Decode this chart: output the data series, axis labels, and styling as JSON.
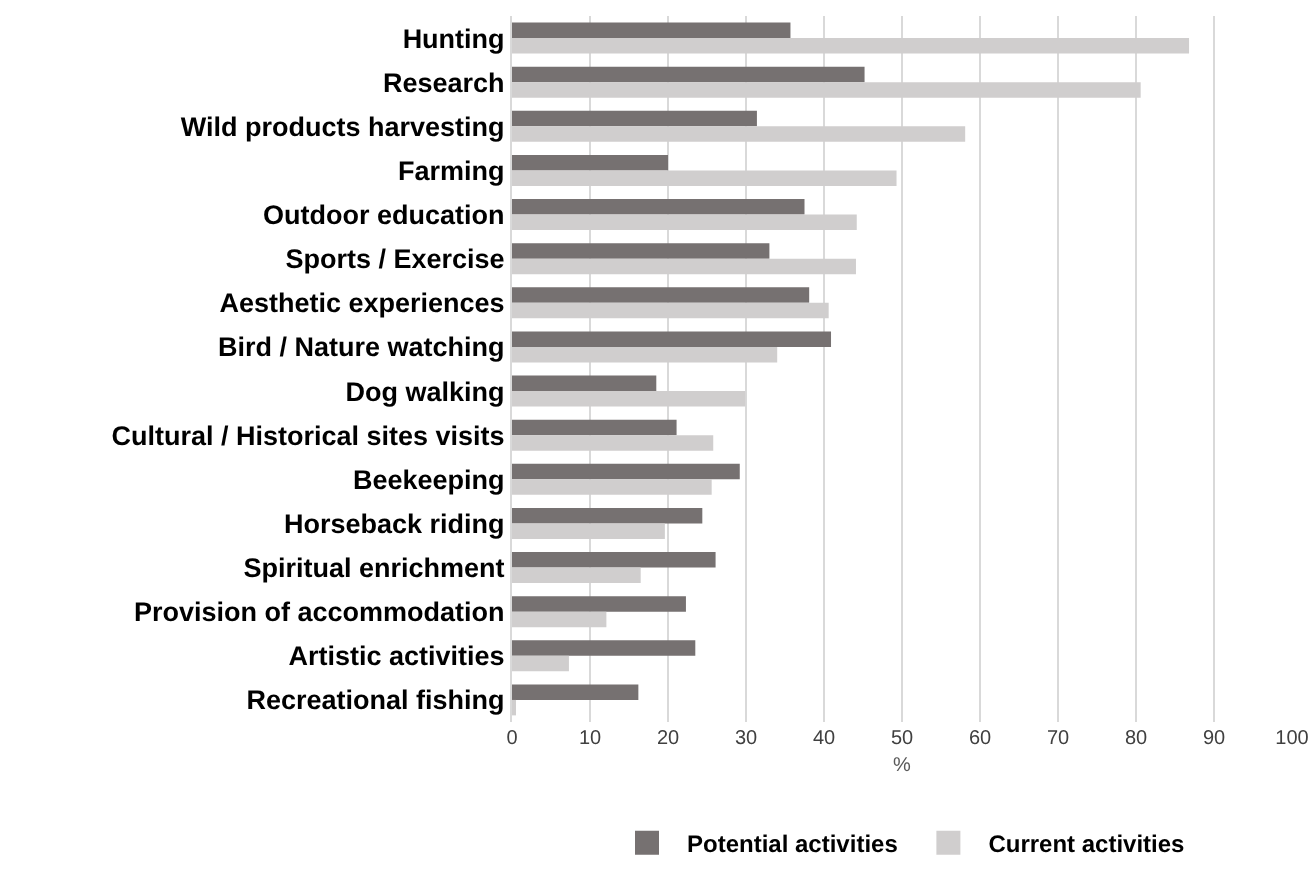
{
  "chart_data": {
    "type": "bar",
    "orientation": "horizontal",
    "xlabel": "%",
    "categories": [
      "Hunting",
      "Research",
      "Wild products harvesting",
      "Farming",
      "Outdoor education",
      "Sports / Exercise",
      "Aesthetic experiences",
      "Bird / Nature watching",
      "Dog walking",
      "Cultural / Historical sites visits",
      "Beekeeping",
      "Horseback riding",
      "Spiritual enrichment",
      "Provision of accommodation",
      "Artistic activities",
      "Recreational fishing"
    ],
    "series": [
      {
        "name": "Potential activities",
        "color": "#767171",
        "values": [
          35.7,
          45.2,
          31.4,
          20.0,
          37.5,
          33.0,
          38.1,
          40.9,
          18.5,
          21.1,
          29.2,
          24.4,
          26.1,
          22.3,
          23.5,
          16.2
        ]
      },
      {
        "name": "Current activities",
        "color": "#d0cece",
        "values": [
          86.8,
          80.6,
          58.1,
          49.3,
          44.2,
          44.1,
          40.6,
          34.0,
          29.9,
          25.8,
          25.6,
          19.6,
          16.5,
          12.1,
          7.3,
          0.4
        ]
      }
    ],
    "xlim": [
      0,
      100
    ],
    "xticks": [
      0,
      10,
      20,
      30,
      40,
      50,
      60,
      70,
      80,
      90,
      100
    ],
    "grid": "x",
    "legend": "bottom"
  }
}
